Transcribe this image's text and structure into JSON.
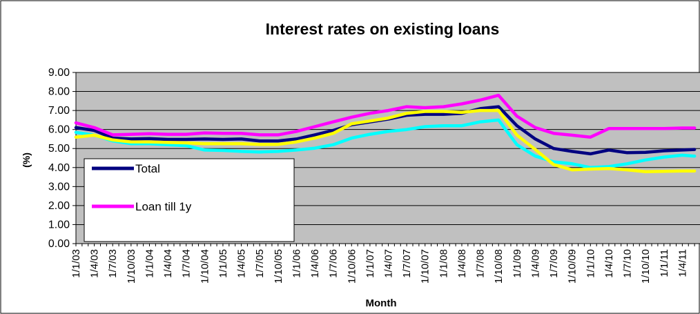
{
  "chart_data": {
    "type": "line",
    "title": "Interest rates on existing loans",
    "xlabel": "Month",
    "ylabel": "(%)",
    "ylim": [
      0,
      9
    ],
    "y_ticks": [
      "0.00",
      "1.00",
      "2.00",
      "3.00",
      "4.00",
      "5.00",
      "6.00",
      "7.00",
      "8.00",
      "9.00"
    ],
    "x_ticks": [
      "1/1/03",
      "1/4/03",
      "1/7/03",
      "1/10/03",
      "1/1/04",
      "1/4/04",
      "1/7/04",
      "1/10/04",
      "1/1/05",
      "1/4/05",
      "1/7/05",
      "1/10/05",
      "1/1/06",
      "1/4/06",
      "1/7/06",
      "1/10/06",
      "1/1/07",
      "1/4/07",
      "1/7/07",
      "1/10/07",
      "1/1/08",
      "1/4/08",
      "1/7/08",
      "1/10/08",
      "1/1/09",
      "1/4/09",
      "1/7/09",
      "1/10/09",
      "1/1/10",
      "1/4/10",
      "1/7/10",
      "1/10/10",
      "1/1/11",
      "1/4/11"
    ],
    "grid": true,
    "plot_background": "#c0c0c0",
    "legend": {
      "position": "bottom-left",
      "entries": [
        "Total",
        "Loan till 1y"
      ]
    },
    "series": [
      {
        "name": "Total",
        "color": "#000080",
        "x": [
          "1/1/03",
          "1/4/03",
          "1/7/03",
          "1/10/03",
          "1/1/04",
          "1/4/04",
          "1/7/04",
          "1/10/04",
          "1/1/05",
          "1/4/05",
          "1/7/05",
          "1/10/05",
          "1/1/06",
          "1/4/06",
          "1/7/06",
          "1/10/06",
          "1/1/07",
          "1/4/07",
          "1/7/07",
          "1/10/07",
          "1/1/08",
          "1/4/08",
          "1/7/08",
          "1/10/08",
          "1/1/09",
          "1/4/09",
          "1/7/09",
          "1/10/09",
          "1/1/10",
          "1/4/10",
          "1/7/10",
          "1/10/10",
          "1/1/11",
          "1/4/11",
          "1/6/11"
        ],
        "values": [
          6.1,
          5.95,
          5.55,
          5.5,
          5.52,
          5.48,
          5.48,
          5.5,
          5.48,
          5.5,
          5.4,
          5.4,
          5.5,
          5.72,
          5.95,
          6.25,
          6.4,
          6.55,
          6.75,
          6.8,
          6.8,
          6.85,
          7.1,
          7.2,
          6.2,
          5.5,
          5.0,
          4.85,
          4.72,
          4.92,
          4.78,
          4.8,
          4.88,
          4.92,
          4.95
        ]
      },
      {
        "name": "Loan till 1y",
        "color": "#ff00ff",
        "x": [
          "1/1/03",
          "1/4/03",
          "1/7/03",
          "1/10/03",
          "1/1/04",
          "1/4/04",
          "1/7/04",
          "1/10/04",
          "1/1/05",
          "1/4/05",
          "1/7/05",
          "1/10/05",
          "1/1/06",
          "1/4/06",
          "1/7/06",
          "1/10/06",
          "1/1/07",
          "1/4/07",
          "1/7/07",
          "1/10/07",
          "1/1/08",
          "1/4/08",
          "1/7/08",
          "1/10/08",
          "1/1/09",
          "1/4/09",
          "1/7/09",
          "1/10/09",
          "1/1/10",
          "1/4/10",
          "1/7/10",
          "1/10/10",
          "1/1/11",
          "1/4/11",
          "1/6/11"
        ],
        "values": [
          6.35,
          6.1,
          5.72,
          5.75,
          5.78,
          5.75,
          5.75,
          5.82,
          5.8,
          5.8,
          5.72,
          5.72,
          5.9,
          6.15,
          6.4,
          6.65,
          6.85,
          7.0,
          7.2,
          7.15,
          7.2,
          7.35,
          7.55,
          7.8,
          6.7,
          6.1,
          5.8,
          5.7,
          5.6,
          6.05,
          6.05,
          6.05,
          6.05,
          6.08,
          6.08
        ]
      },
      {
        "color": "#00ffff",
        "x": [
          "1/1/03",
          "1/4/03",
          "1/7/03",
          "1/10/03",
          "1/1/04",
          "1/4/04",
          "1/7/04",
          "1/10/04",
          "1/1/05",
          "1/4/05",
          "1/7/05",
          "1/10/05",
          "1/1/06",
          "1/4/06",
          "1/7/06",
          "1/10/06",
          "1/1/07",
          "1/4/07",
          "1/7/07",
          "1/10/07",
          "1/1/08",
          "1/4/08",
          "1/7/08",
          "1/10/08",
          "1/1/09",
          "1/4/09",
          "1/7/09",
          "1/10/09",
          "1/1/10",
          "1/4/10",
          "1/7/10",
          "1/10/10",
          "1/1/11",
          "1/4/11",
          "1/6/11"
        ],
        "values": [
          5.85,
          5.7,
          5.4,
          5.25,
          5.25,
          5.2,
          5.15,
          4.92,
          4.9,
          4.85,
          4.82,
          4.85,
          4.92,
          5.02,
          5.2,
          5.55,
          5.75,
          5.9,
          6.0,
          6.15,
          6.2,
          6.2,
          6.4,
          6.5,
          5.2,
          4.6,
          4.3,
          4.2,
          4.0,
          4.05,
          4.2,
          4.4,
          4.55,
          4.65,
          4.6
        ]
      },
      {
        "color": "#ffff00",
        "x": [
          "1/1/03",
          "1/4/03",
          "1/7/03",
          "1/10/03",
          "1/1/04",
          "1/4/04",
          "1/7/04",
          "1/10/04",
          "1/1/05",
          "1/4/05",
          "1/7/05",
          "1/10/05",
          "1/1/06",
          "1/4/06",
          "1/7/06",
          "1/10/06",
          "1/1/07",
          "1/4/07",
          "1/7/07",
          "1/10/07",
          "1/1/08",
          "1/4/08",
          "1/7/08",
          "1/10/08",
          "1/1/09",
          "1/4/09",
          "1/7/09",
          "1/10/09",
          "1/1/10",
          "1/4/10",
          "1/7/10",
          "1/10/10",
          "1/1/11",
          "1/4/11",
          "1/6/11"
        ],
        "values": [
          5.6,
          5.7,
          5.45,
          5.35,
          5.35,
          5.32,
          5.3,
          5.25,
          5.25,
          5.25,
          5.22,
          5.22,
          5.35,
          5.55,
          5.8,
          6.3,
          6.45,
          6.6,
          6.85,
          6.95,
          6.95,
          6.9,
          7.0,
          7.0,
          5.7,
          4.95,
          4.15,
          3.88,
          3.92,
          3.95,
          3.88,
          3.78,
          3.8,
          3.82,
          3.82
        ]
      }
    ]
  }
}
